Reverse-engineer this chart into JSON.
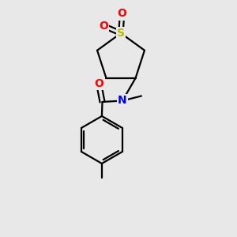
{
  "background_color": "#e8e8e8",
  "atom_colors": {
    "S": "#b8b800",
    "O": "#ff0000",
    "N": "#0000ee",
    "C": "#000000"
  },
  "font_size": 9.5,
  "bond_lw": 1.6,
  "figsize": [
    3.0,
    3.0
  ],
  "dpi": 100
}
